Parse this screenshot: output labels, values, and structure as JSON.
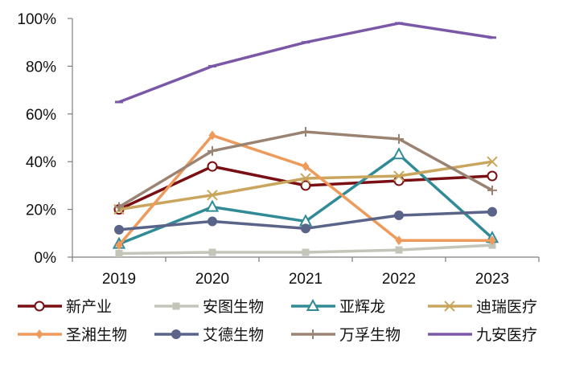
{
  "chart_data": {
    "type": "line",
    "title": "",
    "xlabel": "",
    "ylabel": "",
    "categories": [
      "2019",
      "2020",
      "2021",
      "2022",
      "2023"
    ],
    "y_ticks": [
      "0%",
      "20%",
      "40%",
      "60%",
      "80%",
      "100%"
    ],
    "ylim": [
      0,
      100
    ],
    "grid": false,
    "legend_position": "bottom",
    "series": [
      {
        "name": "新产业",
        "values": [
          20,
          38,
          30,
          32,
          34
        ],
        "color": "#7a0f13",
        "marker": "circle-open"
      },
      {
        "name": "安图生物",
        "values": [
          1.5,
          2,
          2,
          3,
          5
        ],
        "color": "#c2c5b8",
        "marker": "square"
      },
      {
        "name": "亚辉龙",
        "values": [
          5.5,
          21,
          15,
          43,
          8
        ],
        "color": "#318b96",
        "marker": "triangle-open"
      },
      {
        "name": "迪瑞医疗",
        "values": [
          20,
          26,
          33,
          34,
          40
        ],
        "color": "#c9a55d",
        "marker": "x"
      },
      {
        "name": "圣湘生物",
        "values": [
          5,
          51,
          38,
          7,
          7
        ],
        "color": "#ee9a5a",
        "marker": "diamond"
      },
      {
        "name": "艾德生物",
        "values": [
          11.5,
          15,
          12,
          17.5,
          19
        ],
        "color": "#5a6488",
        "marker": "circle"
      },
      {
        "name": "万孚生物",
        "values": [
          21,
          44.5,
          52.5,
          49.5,
          28
        ],
        "color": "#9b8373",
        "marker": "plus"
      },
      {
        "name": "九安医疗",
        "values": [
          65,
          80,
          90,
          98,
          92
        ],
        "color": "#7b57a8",
        "marker": "dash"
      }
    ]
  }
}
